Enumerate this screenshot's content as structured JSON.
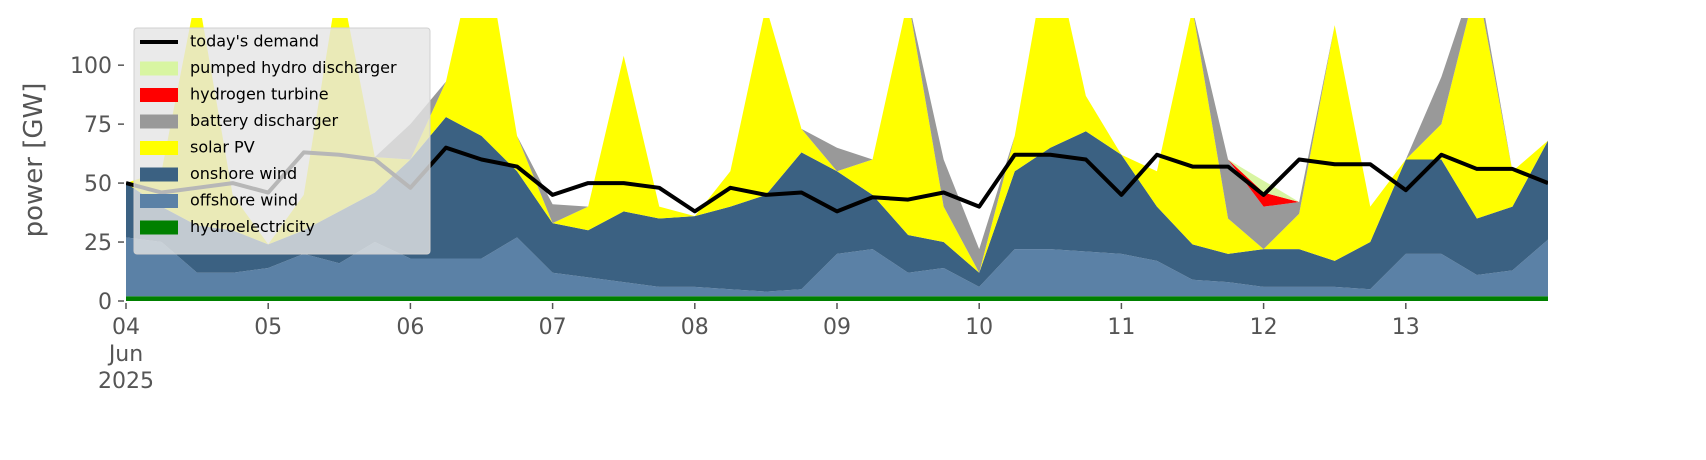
{
  "chart_data": {
    "type": "area",
    "ylabel": "power [GW]",
    "x": [
      4,
      4.25,
      4.5,
      4.75,
      5,
      5.25,
      5.5,
      5.75,
      6,
      6.25,
      6.5,
      6.75,
      7,
      7.25,
      7.5,
      7.75,
      8,
      8.25,
      8.5,
      8.75,
      9,
      9.25,
      9.5,
      9.75,
      10,
      10.25,
      10.5,
      10.75,
      11,
      11.25,
      11.5,
      11.75,
      12,
      12.25,
      12.5,
      12.75,
      13,
      13.25,
      13.5,
      13.75,
      14
    ],
    "xlim": [
      4,
      14
    ],
    "xticks": [
      {
        "value": 4,
        "label": "04\nJun\n2025"
      },
      {
        "value": 5,
        "label": "05"
      },
      {
        "value": 6,
        "label": "06"
      },
      {
        "value": 7,
        "label": "07"
      },
      {
        "value": 8,
        "label": "08"
      },
      {
        "value": 9,
        "label": "09"
      },
      {
        "value": 10,
        "label": "10"
      },
      {
        "value": 11,
        "label": "11"
      },
      {
        "value": 12,
        "label": "12"
      },
      {
        "value": 13,
        "label": "13"
      }
    ],
    "ylim": [
      0,
      120
    ],
    "yticks": [
      0,
      25,
      50,
      75,
      100
    ],
    "grid": false,
    "legend": "upper left",
    "series": [
      {
        "name": "hydroelectricity",
        "color": "#008000",
        "values": [
          2,
          2,
          2,
          2,
          2,
          2,
          2,
          2,
          2,
          2,
          2,
          2,
          2,
          2,
          2,
          2,
          2,
          2,
          2,
          2,
          2,
          2,
          2,
          2,
          2,
          2,
          2,
          2,
          2,
          2,
          2,
          2,
          2,
          2,
          2,
          2,
          2,
          2,
          2,
          2,
          2
        ]
      },
      {
        "name": "offshore wind",
        "color": "#5b81a6",
        "values": [
          25,
          23,
          10,
          10,
          12,
          18,
          14,
          23,
          16,
          16,
          16,
          25,
          10,
          8,
          6,
          4,
          4,
          3,
          2,
          3,
          18,
          20,
          10,
          12,
          4,
          20,
          20,
          19,
          18,
          15,
          7,
          6,
          4,
          4,
          4,
          3,
          18,
          18,
          9,
          11,
          24
        ]
      },
      {
        "name": "onshore wind",
        "color": "#3b6182",
        "values": [
          23,
          15,
          20,
          18,
          10,
          10,
          22,
          21,
          42,
          60,
          52,
          28,
          21,
          20,
          30,
          29,
          30,
          35,
          41,
          58,
          35,
          23,
          16,
          11,
          6,
          33,
          43,
          51,
          42,
          23,
          15,
          12,
          16,
          16,
          11,
          20,
          40,
          40,
          24,
          27,
          42
        ]
      },
      {
        "name": "solar PV",
        "color": "#ffff00",
        "values": [
          0,
          15,
          100,
          15,
          0,
          15,
          100,
          15,
          0,
          15,
          90,
          15,
          0,
          10,
          66,
          5,
          0,
          15,
          80,
          10,
          0,
          15,
          100,
          15,
          0,
          15,
          90,
          15,
          0,
          15,
          100,
          15,
          0,
          15,
          100,
          15,
          0,
          15,
          100,
          15,
          0
        ]
      },
      {
        "name": "battery discharger",
        "color": "#999999",
        "values": [
          0,
          0,
          0,
          0,
          0,
          0,
          0,
          0,
          15,
          0,
          0,
          0,
          8,
          0,
          0,
          0,
          0,
          0,
          0,
          0,
          10,
          0,
          0,
          20,
          10,
          0,
          0,
          0,
          0,
          0,
          0,
          25,
          18,
          5,
          0,
          0,
          0,
          20,
          5,
          0,
          0
        ]
      },
      {
        "name": "hydrogen turbine",
        "color": "#ff0000",
        "values": [
          0,
          0,
          0,
          0,
          0,
          0,
          0,
          0,
          0,
          0,
          0,
          0,
          0,
          0,
          0,
          0,
          0,
          0,
          0,
          0,
          0,
          0,
          0,
          0,
          0,
          0,
          0,
          0,
          0,
          0,
          0,
          0,
          6,
          0,
          0,
          0,
          0,
          0,
          0,
          0,
          0
        ]
      },
      {
        "name": "pumped hydro discharger",
        "color": "#d8f5a2",
        "values": [
          0,
          0,
          0,
          0,
          0,
          0,
          0,
          0,
          0,
          0,
          0,
          0,
          0,
          0,
          0,
          0,
          0,
          0,
          0,
          0,
          0,
          0,
          0,
          0,
          0,
          0,
          0,
          0,
          0,
          0,
          0,
          0,
          5,
          0,
          0,
          0,
          0,
          0,
          0,
          0,
          0
        ]
      }
    ],
    "line_series": {
      "name": "today's demand",
      "color": "#000000",
      "values": [
        50,
        46,
        48,
        50,
        46,
        63,
        62,
        60,
        48,
        65,
        60,
        57,
        45,
        50,
        50,
        48,
        38,
        48,
        45,
        46,
        38,
        44,
        43,
        46,
        40,
        62,
        62,
        60,
        45,
        62,
        57,
        57,
        45,
        60,
        58,
        58,
        47,
        62,
        56,
        56,
        50
      ]
    }
  }
}
